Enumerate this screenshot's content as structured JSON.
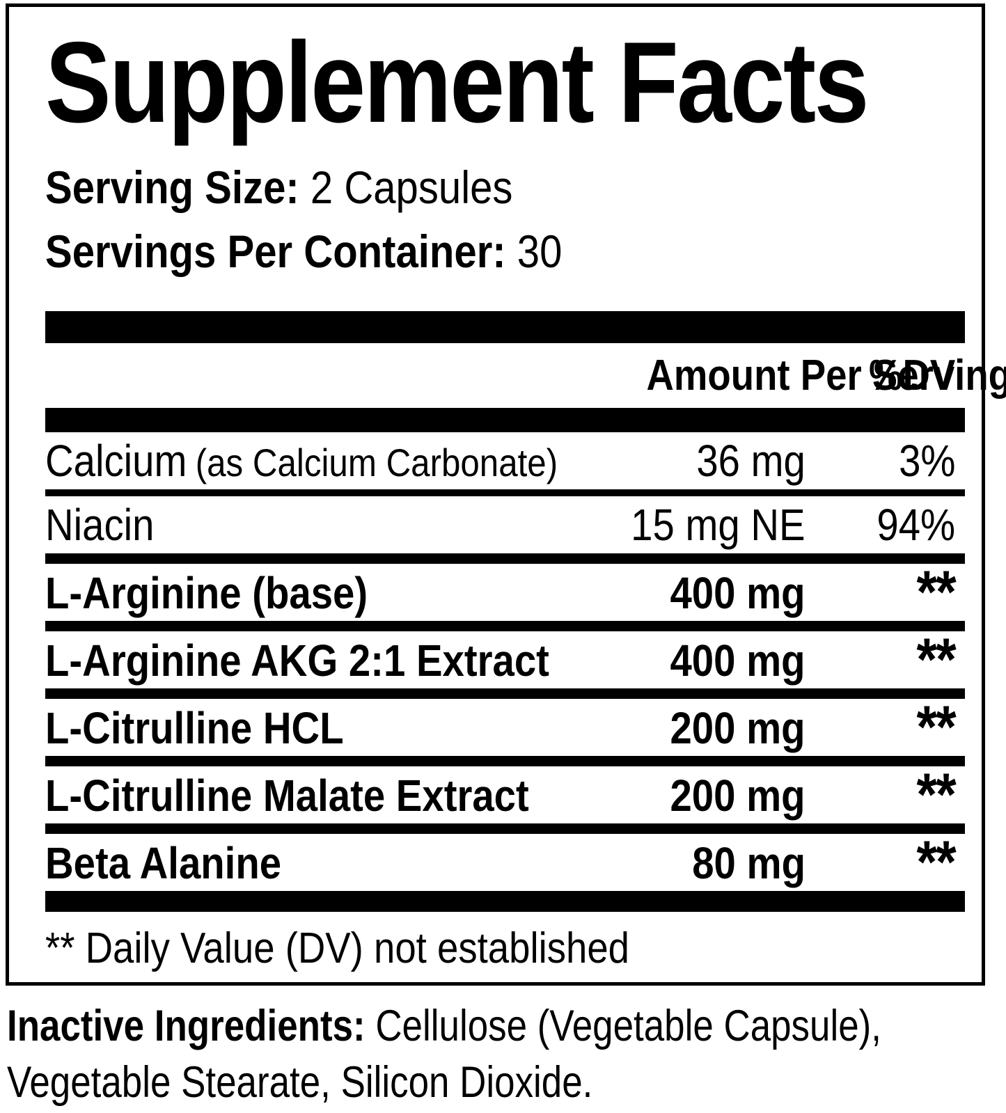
{
  "panel": {
    "title": "Supplement Facts",
    "serving_size_label": "Serving Size:",
    "serving_size_value": "2 Capsules",
    "servings_label": "Servings Per Container:",
    "servings_value": "30",
    "header": {
      "amount": "Amount Per Serving",
      "dv": "%DV"
    },
    "rows": [
      {
        "name": "Calcium",
        "name_note": "(as Calcium Carbonate)",
        "amount": "36 mg",
        "dv": "3%",
        "bold": false
      },
      {
        "name": "Niacin",
        "amount": "15 mg NE",
        "dv": "94%",
        "bold": false
      },
      {
        "name": "L-Arginine (base)",
        "amount": "400 mg",
        "dv": "**",
        "bold": true
      },
      {
        "name": "L-Arginine AKG 2:1 Extract",
        "amount": "400 mg",
        "dv": "**",
        "bold": true
      },
      {
        "name": "L-Citrulline HCL",
        "amount": "200 mg",
        "dv": "**",
        "bold": true
      },
      {
        "name": "L-Citrulline Malate Extract",
        "amount": "200 mg",
        "dv": "**",
        "bold": true
      },
      {
        "name": "Beta Alanine",
        "amount": "80 mg",
        "dv": "**",
        "bold": true
      }
    ],
    "footnote": "** Daily Value (DV) not established"
  },
  "inactive": {
    "label": "Inactive Ingredients:",
    "line1_rest": "Cellulose (Vegetable Capsule),",
    "line2": "Vegetable Stearate, Silicon Dioxide."
  },
  "colors": {
    "ink": "#000000",
    "background": "#ffffff"
  }
}
